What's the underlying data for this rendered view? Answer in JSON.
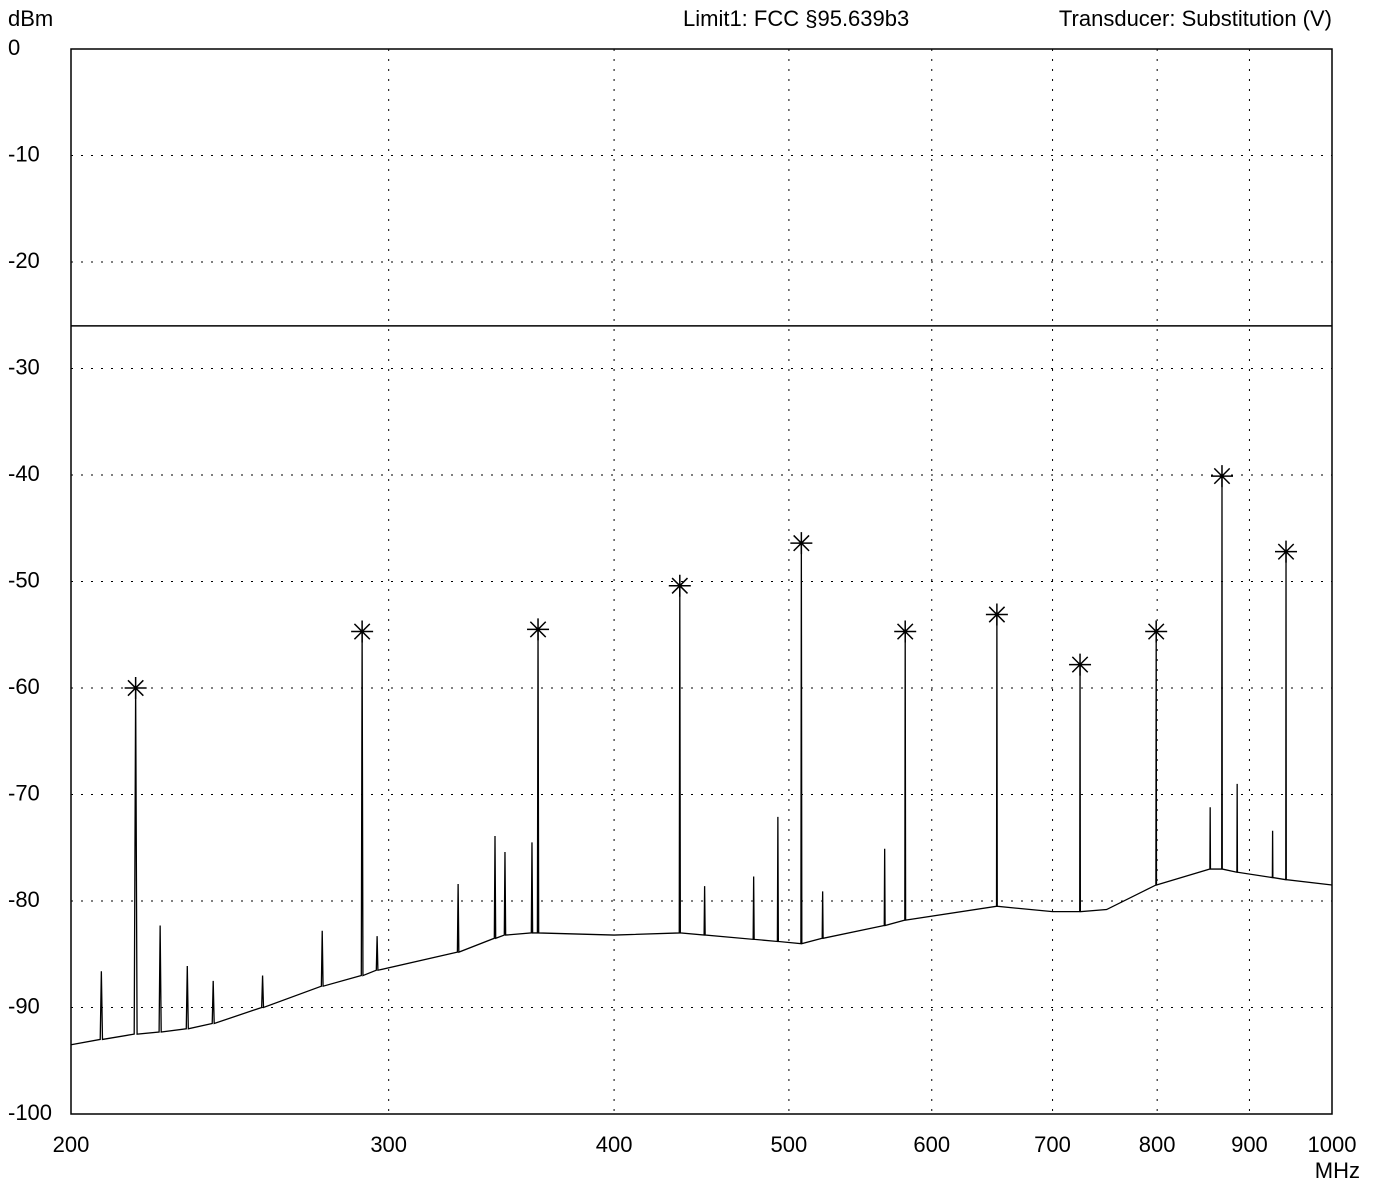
{
  "chart_data": {
    "type": "line",
    "y_label": "dBm",
    "x_label": "MHz",
    "header": [
      "Limit1: FCC §95.639b3",
      "Transducer: Substitution (V)"
    ],
    "xscale": "log",
    "xlim": [
      200,
      1000
    ],
    "xticks": [
      200,
      300,
      400,
      500,
      600,
      700,
      800,
      900,
      1000
    ],
    "ylim": [
      -100,
      0
    ],
    "yticks": [
      0,
      -10,
      -20,
      -30,
      -40,
      -50,
      -60,
      -70,
      -80,
      -90,
      -100
    ],
    "grid": true,
    "color": "#000000",
    "limit_line": -26,
    "x": [
      200,
      207.6,
      207.9,
      208.2,
      216.8,
      217.2,
      217.6,
      223.8,
      224.1,
      224.4,
      231.7,
      232,
      232.3,
      239.5,
      239.8,
      240.1,
      255.1,
      255.4,
      255.7,
      275.3,
      275.6,
      275.9,
      289.7,
      290,
      290.3,
      295.3,
      295.6,
      295.9,
      327.5,
      327.8,
      328.1,
      343.3,
      343.6,
      343.9,
      347.7,
      348,
      348.3,
      359.9,
      360.2,
      360.5,
      362.7,
      363,
      363.3,
      400,
      434.7,
      435,
      435.3,
      448.7,
      449,
      449.3,
      477.7,
      478,
      478.3,
      492.7,
      493,
      493.3,
      507.7,
      508,
      508.3,
      521.7,
      522,
      522.3,
      564.7,
      565,
      565.3,
      579.7,
      580,
      580.3,
      651.7,
      652,
      652.3,
      700,
      724.7,
      725,
      725.3,
      750,
      798.7,
      799,
      799.3,
      855.7,
      856,
      856.3,
      868.7,
      869,
      869.3,
      885.7,
      886,
      886.3,
      926.7,
      927,
      927.3,
      942.7,
      943,
      943.3,
      1000
    ],
    "values": [
      -93.5,
      -93,
      -86.6,
      -93,
      -92.5,
      -60,
      -92.5,
      -92.3,
      -82.3,
      -92.3,
      -92,
      -86.1,
      -92,
      -91.5,
      -87.5,
      -91.5,
      -90,
      -87,
      -90,
      -88,
      -82.8,
      -88,
      -87,
      -54.7,
      -87,
      -86.5,
      -83.3,
      -86.5,
      -84.8,
      -78.4,
      -84.8,
      -83.5,
      -73.9,
      -83.5,
      -83.2,
      -75.4,
      -83.2,
      -83,
      -74.5,
      -83,
      -83,
      -54.5,
      -83,
      -83.2,
      -83,
      -50.4,
      -83,
      -83.2,
      -78.6,
      -83.2,
      -83.6,
      -77.7,
      -83.6,
      -83.8,
      -72.1,
      -83.8,
      -84,
      -46.4,
      -84,
      -83.5,
      -79.1,
      -83.5,
      -82.3,
      -75.1,
      -82.3,
      -81.8,
      -54.7,
      -81.8,
      -80.5,
      -53.1,
      -80.5,
      -81,
      -81,
      -57.8,
      -81,
      -80.8,
      -78.5,
      -54.7,
      -78.5,
      -77,
      -71.2,
      -77,
      -77,
      -40.1,
      -77,
      -77.3,
      -69,
      -77.3,
      -77.8,
      -73.4,
      -77.8,
      -78,
      -47.2,
      -78,
      -78.5
    ],
    "markers": {
      "x": [
        217.2,
        290,
        363,
        435,
        508,
        580,
        652,
        725,
        799,
        869,
        943
      ],
      "values": [
        -60,
        -54.7,
        -54.5,
        -50.4,
        -46.4,
        -54.7,
        -53.1,
        -57.8,
        -54.7,
        -40.1,
        -47.2
      ]
    }
  }
}
